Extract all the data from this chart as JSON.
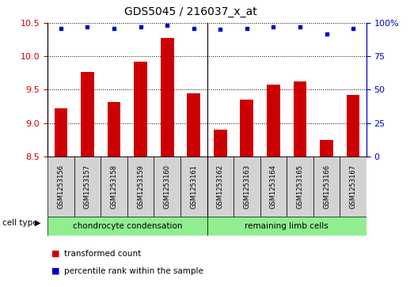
{
  "title": "GDS5045 / 216037_x_at",
  "samples": [
    "GSM1253156",
    "GSM1253157",
    "GSM1253158",
    "GSM1253159",
    "GSM1253160",
    "GSM1253161",
    "GSM1253162",
    "GSM1253163",
    "GSM1253164",
    "GSM1253165",
    "GSM1253166",
    "GSM1253167"
  ],
  "transformed_count": [
    9.22,
    9.77,
    9.32,
    9.92,
    10.28,
    9.45,
    8.9,
    9.35,
    9.58,
    9.62,
    8.75,
    9.42
  ],
  "percentile_rank": [
    96,
    97,
    96,
    97,
    98,
    96,
    95,
    96,
    97,
    97,
    92,
    96
  ],
  "ylim_left": [
    8.5,
    10.5
  ],
  "ylim_right": [
    0,
    100
  ],
  "yticks_left": [
    8.5,
    9.0,
    9.5,
    10.0,
    10.5
  ],
  "yticks_right": [
    0,
    25,
    50,
    75,
    100
  ],
  "ytick_labels_right": [
    "0",
    "25",
    "50",
    "75",
    "100%"
  ],
  "bar_color": "#cc0000",
  "dot_color": "#0000cc",
  "cell_types": [
    {
      "label": "chondrocyte condensation",
      "count": 6,
      "color": "#90ee90"
    },
    {
      "label": "remaining limb cells",
      "count": 6,
      "color": "#90ee90"
    }
  ],
  "cell_type_label": "cell type",
  "legend_items": [
    {
      "label": "transformed count",
      "color": "#cc0000"
    },
    {
      "label": "percentile rank within the sample",
      "color": "#0000cc"
    }
  ],
  "title_fontsize": 10,
  "tick_fontsize": 8,
  "bar_width": 0.5,
  "sample_box_color": "#d3d3d3",
  "separator_idx": 6
}
